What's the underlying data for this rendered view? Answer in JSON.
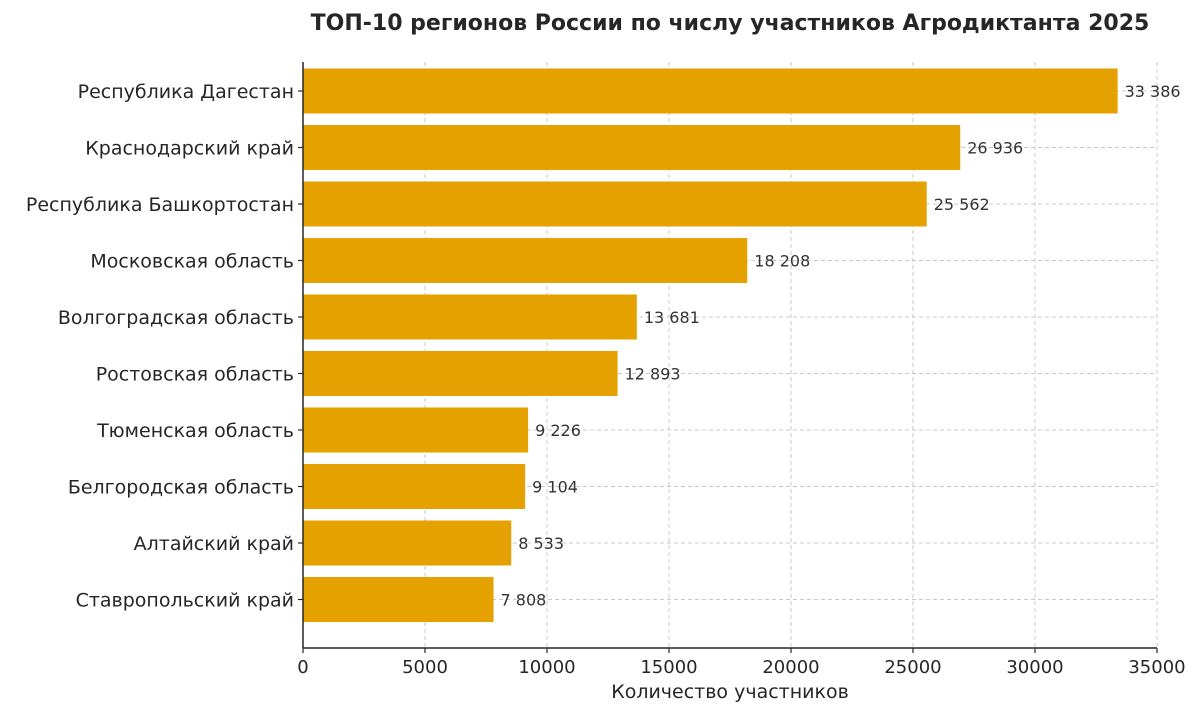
{
  "chart_data": {
    "type": "bar",
    "orientation": "horizontal",
    "title": "ТОП-10 регионов России по числу участников Агродиктанта 2025",
    "xlabel": "Количество участников",
    "ylabel": "",
    "xlim": [
      0,
      35000
    ],
    "x_ticks": [
      0,
      5000,
      10000,
      15000,
      20000,
      25000,
      30000,
      35000
    ],
    "grid": true,
    "bar_color": "#E5A100",
    "categories": [
      "Республика Дагестан",
      "Краснодарский край",
      "Республика Башкортостан",
      "Московская область",
      "Волгоградская область",
      "Ростовская область",
      "Тюменская область",
      "Белгородская область",
      "Алтайский край",
      "Ставропольский край"
    ],
    "values": [
      33386,
      26936,
      25562,
      18208,
      13681,
      12893,
      9226,
      9104,
      8533,
      7808
    ],
    "value_labels": [
      "33 386",
      "26 936",
      "25 562",
      "18 208",
      "13 681",
      "12 893",
      "9 226",
      "9 104",
      "8 533",
      "7 808"
    ]
  }
}
